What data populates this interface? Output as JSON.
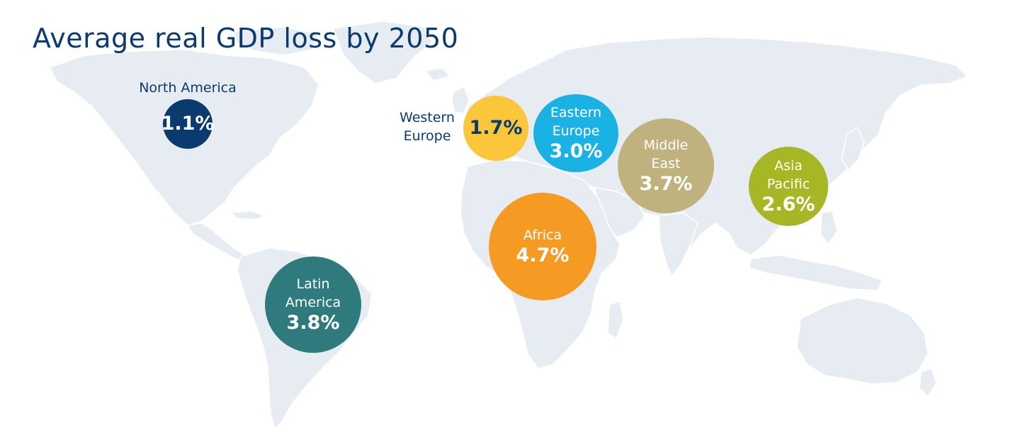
{
  "title": "Average real GDP loss by 2050",
  "map": {
    "land_color": "#e6ecf1",
    "land_stroke": "#ffffff"
  },
  "regions": {
    "north_america": {
      "name": "North America",
      "value": "1.1%",
      "color": "#0b3a6e"
    },
    "western_europe": {
      "name": "Western\nEurope",
      "value": "1.7%",
      "color": "#fcc63a"
    },
    "eastern_europe": {
      "name": "Eastern\nEurope",
      "value": "3.0%",
      "color": "#1ab2e5"
    },
    "middle_east": {
      "name": "Middle\nEast",
      "value": "3.7%",
      "color": "#bfb27f"
    },
    "asia_pacific": {
      "name": "Asia\nPacific",
      "value": "2.6%",
      "color": "#a7b625"
    },
    "africa": {
      "name": "Africa",
      "value": "4.7%",
      "color": "#f59a23"
    },
    "latin_america": {
      "name": "Latin\nAmerica",
      "value": "3.8%",
      "color": "#2e7a7d"
    }
  }
}
